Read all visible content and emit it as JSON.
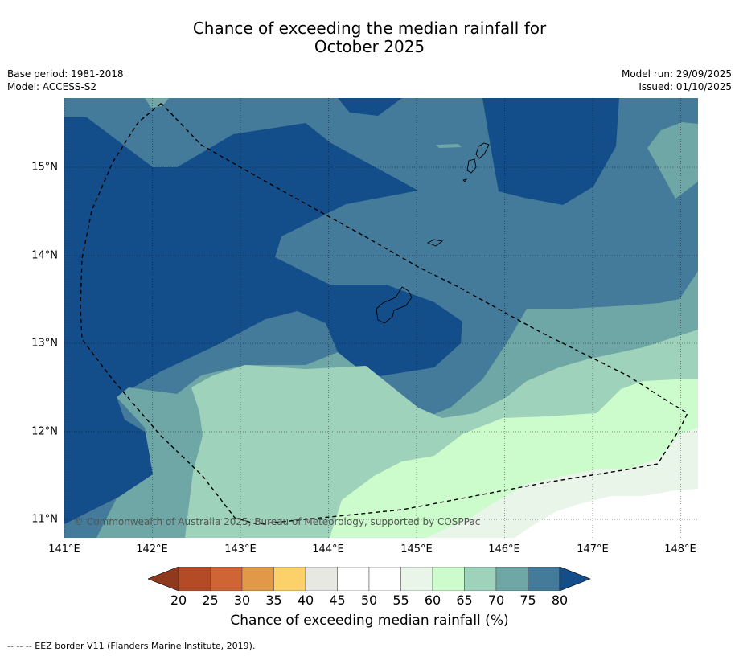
{
  "title_line1": "Chance of exceeding the median rainfall for",
  "title_line2": "October 2025",
  "meta": {
    "base_period": "Base period: 1981-2018",
    "model": "Model: ACCESS-S2",
    "model_run": "Model run: 29/09/2025",
    "issued": "Issued: 01/10/2025"
  },
  "map": {
    "lon_range": [
      141,
      148.2
    ],
    "lat_range": [
      10.8,
      15.8
    ],
    "x_ticks": [
      "141°E",
      "142°E",
      "143°E",
      "144°E",
      "145°E",
      "146°E",
      "147°E",
      "148°E"
    ],
    "y_ticks": [
      "15°N",
      "14°N",
      "13°N",
      "12°N",
      "11°N"
    ],
    "copyright": "© Commonwealth of Australia 2025, Bureau of Meteorology, supported by COSPPac",
    "gridlines": true
  },
  "colorbar": {
    "title": "Chance of exceeding median rainfall (%)",
    "labels": [
      "20",
      "25",
      "30",
      "35",
      "40",
      "45",
      "50",
      "55",
      "60",
      "65",
      "70",
      "75",
      "80"
    ],
    "colors": [
      "#8f3a1e",
      "#b34c26",
      "#cf6534",
      "#e29849",
      "#fdd16a",
      "#e8e8e3",
      "#ffffff",
      "#ffffff",
      "#eaf5ea",
      "#ccfccc",
      "#9ed2ba",
      "#6fa6a6",
      "#447a9a",
      "#144e8a"
    ]
  },
  "footer": "-- -- -- EEZ border V11 (Flanders Marine Institute, 2019)."
}
